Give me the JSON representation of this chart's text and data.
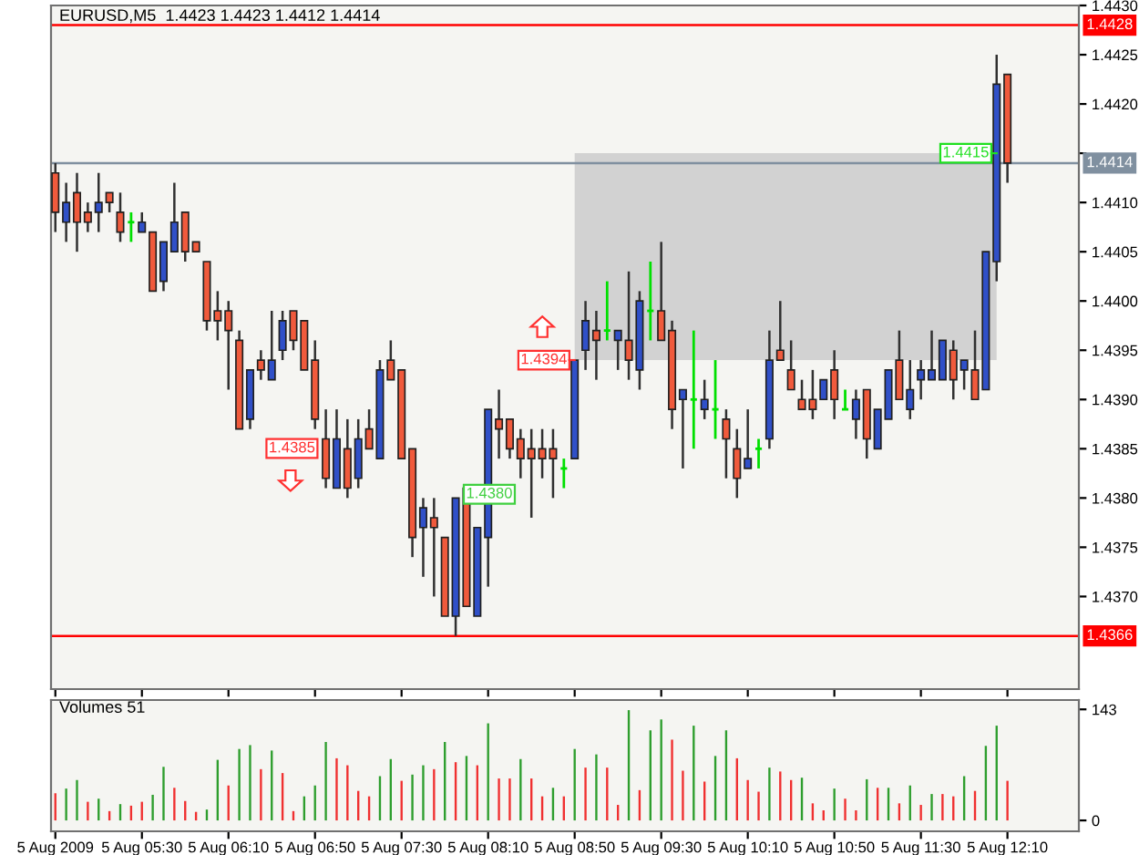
{
  "chart_data": [
    {
      "type": "candlestick",
      "title": "EURUSD,M5  1.4423 1.4423 1.4412 1.4414",
      "x": [
        "2009-08-05T04:50",
        "2009-08-05T04:55",
        "2009-08-05T05:00",
        "2009-08-05T05:05",
        "2009-08-05T05:10",
        "2009-08-05T05:15",
        "2009-08-05T05:20",
        "2009-08-05T05:25",
        "2009-08-05T05:30",
        "2009-08-05T05:35",
        "2009-08-05T05:40",
        "2009-08-05T05:45",
        "2009-08-05T05:50",
        "2009-08-05T05:55",
        "2009-08-05T06:00",
        "2009-08-05T06:05",
        "2009-08-05T06:10",
        "2009-08-05T06:15",
        "2009-08-05T06:20",
        "2009-08-05T06:25",
        "2009-08-05T06:30",
        "2009-08-05T06:35",
        "2009-08-05T06:40",
        "2009-08-05T06:45",
        "2009-08-05T06:50",
        "2009-08-05T06:55",
        "2009-08-05T07:00",
        "2009-08-05T07:05",
        "2009-08-05T07:10",
        "2009-08-05T07:15",
        "2009-08-05T07:20",
        "2009-08-05T07:25",
        "2009-08-05T07:30",
        "2009-08-05T07:35",
        "2009-08-05T07:40",
        "2009-08-05T07:45",
        "2009-08-05T07:50",
        "2009-08-05T07:55",
        "2009-08-05T08:00",
        "2009-08-05T08:05",
        "2009-08-05T08:10",
        "2009-08-05T08:15",
        "2009-08-05T08:20",
        "2009-08-05T08:25",
        "2009-08-05T08:30",
        "2009-08-05T08:35",
        "2009-08-05T08:40",
        "2009-08-05T08:45",
        "2009-08-05T08:50",
        "2009-08-05T08:55",
        "2009-08-05T09:00",
        "2009-08-05T09:05",
        "2009-08-05T09:10",
        "2009-08-05T09:15",
        "2009-08-05T09:20",
        "2009-08-05T09:25",
        "2009-08-05T09:30",
        "2009-08-05T09:35",
        "2009-08-05T09:40",
        "2009-08-05T09:45",
        "2009-08-05T09:50",
        "2009-08-05T09:55",
        "2009-08-05T10:00",
        "2009-08-05T10:05",
        "2009-08-05T10:10",
        "2009-08-05T10:15",
        "2009-08-05T10:20",
        "2009-08-05T10:25",
        "2009-08-05T10:30",
        "2009-08-05T10:35",
        "2009-08-05T10:40",
        "2009-08-05T10:45",
        "2009-08-05T10:50",
        "2009-08-05T10:55",
        "2009-08-05T11:00",
        "2009-08-05T11:05",
        "2009-08-05T11:10",
        "2009-08-05T11:15",
        "2009-08-05T11:20",
        "2009-08-05T11:25",
        "2009-08-05T11:30",
        "2009-08-05T11:35",
        "2009-08-05T11:40",
        "2009-08-05T11:45",
        "2009-08-05T11:50",
        "2009-08-05T11:55",
        "2009-08-05T12:00",
        "2009-08-05T12:05",
        "2009-08-05T12:10"
      ],
      "ohlc": [
        [
          1.4413,
          1.4414,
          1.4407,
          1.4409
        ],
        [
          1.4408,
          1.4412,
          1.4406,
          1.441
        ],
        [
          1.4411,
          1.4413,
          1.4405,
          1.4408
        ],
        [
          1.4409,
          1.441,
          1.4407,
          1.4408
        ],
        [
          1.4409,
          1.4413,
          1.4407,
          1.441
        ],
        [
          1.4411,
          1.4411,
          1.4409,
          1.441
        ],
        [
          1.4409,
          1.4411,
          1.4406,
          1.4407
        ],
        [
          1.4408,
          1.4409,
          1.4406,
          1.4408
        ],
        [
          1.4407,
          1.4409,
          1.4407,
          1.4408
        ],
        [
          1.4407,
          1.4407,
          1.4401,
          1.4401
        ],
        [
          1.4402,
          1.4406,
          1.4401,
          1.4406
        ],
        [
          1.4405,
          1.4412,
          1.4405,
          1.4408
        ],
        [
          1.4409,
          1.4409,
          1.4404,
          1.4405
        ],
        [
          1.4406,
          1.4406,
          1.4405,
          1.4405
        ],
        [
          1.4404,
          1.4404,
          1.4397,
          1.4398
        ],
        [
          1.4399,
          1.4401,
          1.4396,
          1.4398
        ],
        [
          1.4399,
          1.44,
          1.4391,
          1.4397
        ],
        [
          1.4396,
          1.4397,
          1.4387,
          1.4387
        ],
        [
          1.4388,
          1.4393,
          1.4387,
          1.4393
        ],
        [
          1.4394,
          1.4395,
          1.4392,
          1.4393
        ],
        [
          1.4392,
          1.4399,
          1.4392,
          1.4394
        ],
        [
          1.4395,
          1.4399,
          1.4394,
          1.4398
        ],
        [
          1.4399,
          1.4399,
          1.4395,
          1.4396
        ],
        [
          1.4398,
          1.4398,
          1.4393,
          1.4393
        ],
        [
          1.4394,
          1.4396,
          1.4387,
          1.4388
        ],
        [
          1.4386,
          1.4389,
          1.4381,
          1.4382
        ],
        [
          1.4381,
          1.4389,
          1.4381,
          1.4386
        ],
        [
          1.4385,
          1.4388,
          1.438,
          1.4381
        ],
        [
          1.4382,
          1.4388,
          1.4381,
          1.4386
        ],
        [
          1.4387,
          1.4389,
          1.4385,
          1.4385
        ],
        [
          1.4384,
          1.4394,
          1.4384,
          1.4393
        ],
        [
          1.4394,
          1.4396,
          1.4392,
          1.4392
        ],
        [
          1.4393,
          1.4393,
          1.4384,
          1.4384
        ],
        [
          1.4385,
          1.4385,
          1.4374,
          1.4376
        ],
        [
          1.4377,
          1.438,
          1.4372,
          1.4379
        ],
        [
          1.4378,
          1.438,
          1.437,
          1.4377
        ],
        [
          1.4376,
          1.4376,
          1.4368,
          1.4368
        ],
        [
          1.4368,
          1.438,
          1.4366,
          1.438
        ],
        [
          1.4381,
          1.4381,
          1.4369,
          1.4369
        ],
        [
          1.4368,
          1.4377,
          1.4368,
          1.4377
        ],
        [
          1.4376,
          1.4389,
          1.4371,
          1.4389
        ],
        [
          1.4388,
          1.4391,
          1.4384,
          1.4387
        ],
        [
          1.4388,
          1.4388,
          1.4384,
          1.4385
        ],
        [
          1.4386,
          1.4387,
          1.4382,
          1.4384
        ],
        [
          1.4385,
          1.4387,
          1.4378,
          1.4384
        ],
        [
          1.4385,
          1.4387,
          1.4382,
          1.4384
        ],
        [
          1.4385,
          1.4387,
          1.438,
          1.4384
        ],
        [
          1.4383,
          1.4384,
          1.4381,
          1.4383
        ],
        [
          1.4384,
          1.4394,
          1.4384,
          1.4394
        ],
        [
          1.4395,
          1.44,
          1.4393,
          1.4398
        ],
        [
          1.4397,
          1.4399,
          1.4392,
          1.4396
        ],
        [
          1.4397,
          1.4402,
          1.4396,
          1.4397
        ],
        [
          1.4396,
          1.4397,
          1.4393,
          1.4397
        ],
        [
          1.4396,
          1.4403,
          1.4392,
          1.4394
        ],
        [
          1.4393,
          1.4401,
          1.4391,
          1.44
        ],
        [
          1.4399,
          1.4404,
          1.4396,
          1.4399
        ],
        [
          1.4399,
          1.4406,
          1.4396,
          1.4396
        ],
        [
          1.4397,
          1.4398,
          1.4387,
          1.4389
        ],
        [
          1.439,
          1.4391,
          1.4383,
          1.4391
        ],
        [
          1.439,
          1.4397,
          1.4385,
          1.439
        ],
        [
          1.4389,
          1.4392,
          1.4388,
          1.439
        ],
        [
          1.4389,
          1.4394,
          1.4386,
          1.4389
        ],
        [
          1.4388,
          1.4389,
          1.4382,
          1.4386
        ],
        [
          1.4385,
          1.4387,
          1.438,
          1.4382
        ],
        [
          1.4383,
          1.4389,
          1.4383,
          1.4384
        ],
        [
          1.4385,
          1.4386,
          1.4383,
          1.4385
        ],
        [
          1.4386,
          1.4397,
          1.4385,
          1.4394
        ],
        [
          1.4395,
          1.44,
          1.4394,
          1.4394
        ],
        [
          1.4393,
          1.4396,
          1.4391,
          1.4391
        ],
        [
          1.439,
          1.4392,
          1.4389,
          1.4389
        ],
        [
          1.439,
          1.4393,
          1.4388,
          1.4389
        ],
        [
          1.439,
          1.4392,
          1.439,
          1.4392
        ],
        [
          1.4393,
          1.4395,
          1.4388,
          1.439
        ],
        [
          1.4389,
          1.4391,
          1.4389,
          1.4389
        ],
        [
          1.4388,
          1.4391,
          1.4386,
          1.439
        ],
        [
          1.4391,
          1.4391,
          1.4384,
          1.4386
        ],
        [
          1.4385,
          1.4389,
          1.4385,
          1.4389
        ],
        [
          1.4388,
          1.4393,
          1.4388,
          1.4393
        ],
        [
          1.4394,
          1.4397,
          1.439,
          1.439
        ],
        [
          1.4389,
          1.4394,
          1.4388,
          1.4391
        ],
        [
          1.4392,
          1.4394,
          1.439,
          1.4393
        ],
        [
          1.4392,
          1.4397,
          1.4392,
          1.4393
        ],
        [
          1.4392,
          1.4396,
          1.4392,
          1.4396
        ],
        [
          1.4395,
          1.4396,
          1.439,
          1.4392
        ],
        [
          1.4393,
          1.4394,
          1.4391,
          1.4394
        ],
        [
          1.4393,
          1.4397,
          1.439,
          1.439
        ],
        [
          1.4391,
          1.4405,
          1.4391,
          1.4405
        ],
        [
          1.4404,
          1.4425,
          1.4402,
          1.4422
        ],
        [
          1.4423,
          1.4423,
          1.4412,
          1.4414
        ]
      ],
      "colors": [
        "#f05a3c",
        "#3050c8",
        "#f05a3c",
        "#f05a3c",
        "#3050c8",
        "#f05a3c",
        "#f05a3c",
        "#00e000",
        "#3050c8",
        "#f05a3c",
        "#3050c8",
        "#3050c8",
        "#f05a3c",
        "#f05a3c",
        "#f05a3c",
        "#f05a3c",
        "#f05a3c",
        "#f05a3c",
        "#3050c8",
        "#f05a3c",
        "#3050c8",
        "#3050c8",
        "#f05a3c",
        "#f05a3c",
        "#f05a3c",
        "#f05a3c",
        "#3050c8",
        "#f05a3c",
        "#3050c8",
        "#f05a3c",
        "#3050c8",
        "#f05a3c",
        "#f05a3c",
        "#f05a3c",
        "#3050c8",
        "#f05a3c",
        "#f05a3c",
        "#3050c8",
        "#f05a3c",
        "#3050c8",
        "#3050c8",
        "#f05a3c",
        "#f05a3c",
        "#f05a3c",
        "#f05a3c",
        "#f05a3c",
        "#f05a3c",
        "#00e000",
        "#3050c8",
        "#3050c8",
        "#f05a3c",
        "#00e000",
        "#3050c8",
        "#f05a3c",
        "#3050c8",
        "#00e000",
        "#f05a3c",
        "#f05a3c",
        "#3050c8",
        "#00e000",
        "#3050c8",
        "#00e000",
        "#f05a3c",
        "#f05a3c",
        "#3050c8",
        "#00e000",
        "#3050c8",
        "#f05a3c",
        "#f05a3c",
        "#f05a3c",
        "#f05a3c",
        "#3050c8",
        "#f05a3c",
        "#00e000",
        "#3050c8",
        "#f05a3c",
        "#3050c8",
        "#3050c8",
        "#f05a3c",
        "#3050c8",
        "#3050c8",
        "#3050c8",
        "#3050c8",
        "#f05a3c",
        "#3050c8",
        "#f05a3c",
        "#3050c8",
        "#3050c8",
        "#f05a3c"
      ],
      "xlim": [
        "2009-08-05T04:48",
        "2009-08-05T12:43"
      ],
      "ylim": [
        1.43606,
        1.443
      ],
      "yticks": [
        {
          "value": 1.437,
          "label": "1.4370"
        },
        1.4375,
        {
          "value": 1.438,
          "label": "1.4380"
        },
        1.4385,
        {
          "value": 1.439,
          "label": "1.4390"
        },
        1.4395,
        {
          "value": 1.44,
          "label": "1.4400"
        },
        1.4405,
        {
          "value": 1.441,
          "label": "1.4410"
        },
        {
          "value": 1.4415,
          "label": null
        },
        {
          "value": 1.442,
          "label": "1.4420"
        },
        1.4425,
        {
          "value": 1.443,
          "label": "1.4430"
        }
      ],
      "tick_labels": "y",
      "grid": false,
      "legend": false,
      "ref_lines": [
        {
          "axis": "y",
          "value": 1.4428,
          "label": "1.4428",
          "color": "#ff0000"
        },
        {
          "axis": "y",
          "value": 1.4366,
          "label": "1.4366",
          "color": "#ff0000"
        },
        {
          "axis": "y",
          "value": 1.4414,
          "label": "1.4414",
          "color": "#8090a0"
        }
      ],
      "bands": [
        {
          "axis": "y",
          "from": 1.4394,
          "to": 1.4415,
          "color": "#d2d2d2"
        }
      ],
      "xticks": [
        {
          "value": "2009-08-05T04:50",
          "label": null
        },
        {
          "value": "2009-08-05T05:30",
          "label": null
        },
        {
          "value": "2009-08-05T06:10",
          "label": null
        },
        {
          "value": "2009-08-05T06:50",
          "label": null
        },
        {
          "value": "2009-08-05T07:30",
          "label": null
        },
        {
          "value": "2009-08-05T08:10",
          "label": null
        },
        {
          "value": "2009-08-05T08:50",
          "label": null
        },
        {
          "value": "2009-08-05T09:30",
          "label": null
        },
        {
          "value": "2009-08-05T10:10",
          "label": null
        },
        {
          "value": "2009-08-05T10:50",
          "label": null
        },
        {
          "value": "2009-08-05T11:30",
          "label": null
        },
        {
          "value": "2009-08-05T12:10",
          "label": null
        }
      ],
      "annotations": [
        "1.4385",
        {
          "text": "1.4394",
          "x": "2009-08-05T08:50",
          "y": 1.4394
        },
        "1.4380",
        {
          "text": "1.4415",
          "x": "2009-08-05T12:05",
          "y": 1.4415
        }
      ]
    },
    {
      "type": "bar",
      "title": "Volumes 51",
      "x": [
        "2009-08-05T04:50",
        "2009-08-05T04:55",
        "2009-08-05T05:00",
        "2009-08-05T05:05",
        "2009-08-05T05:10",
        "2009-08-05T05:15",
        "2009-08-05T05:20",
        "2009-08-05T05:25",
        "2009-08-05T05:30",
        "2009-08-05T05:35",
        "2009-08-05T05:40",
        "2009-08-05T05:45",
        "2009-08-05T05:50",
        "2009-08-05T05:55",
        "2009-08-05T06:00",
        "2009-08-05T06:05",
        "2009-08-05T06:10",
        "2009-08-05T06:15",
        "2009-08-05T06:20",
        "2009-08-05T06:25",
        "2009-08-05T06:30",
        "2009-08-05T06:35",
        "2009-08-05T06:40",
        "2009-08-05T06:45",
        "2009-08-05T06:50",
        "2009-08-05T06:55",
        "2009-08-05T07:00",
        "2009-08-05T07:05",
        "2009-08-05T07:10",
        "2009-08-05T07:15",
        "2009-08-05T07:20",
        "2009-08-05T07:25",
        "2009-08-05T07:30",
        "2009-08-05T07:35",
        "2009-08-05T07:40",
        "2009-08-05T07:45",
        "2009-08-05T07:50",
        "2009-08-05T07:55",
        "2009-08-05T08:00",
        "2009-08-05T08:05",
        "2009-08-05T08:10",
        "2009-08-05T08:15",
        "2009-08-05T08:20",
        "2009-08-05T08:25",
        "2009-08-05T08:30",
        "2009-08-05T08:35",
        "2009-08-05T08:40",
        "2009-08-05T08:45",
        "2009-08-05T08:50",
        "2009-08-05T08:55",
        "2009-08-05T09:00",
        "2009-08-05T09:05",
        "2009-08-05T09:10",
        "2009-08-05T09:15",
        "2009-08-05T09:20",
        "2009-08-05T09:25",
        "2009-08-05T09:30",
        "2009-08-05T09:35",
        "2009-08-05T09:40",
        "2009-08-05T09:45",
        "2009-08-05T09:50",
        "2009-08-05T09:55",
        "2009-08-05T10:00",
        "2009-08-05T10:05",
        "2009-08-05T10:10",
        "2009-08-05T10:15",
        "2009-08-05T10:20",
        "2009-08-05T10:25",
        "2009-08-05T10:30",
        "2009-08-05T10:35",
        "2009-08-05T10:40",
        "2009-08-05T10:45",
        "2009-08-05T10:50",
        "2009-08-05T10:55",
        "2009-08-05T11:00",
        "2009-08-05T11:05",
        "2009-08-05T11:10",
        "2009-08-05T11:15",
        "2009-08-05T11:20",
        "2009-08-05T11:25",
        "2009-08-05T11:30",
        "2009-08-05T11:35",
        "2009-08-05T11:40",
        "2009-08-05T11:45",
        "2009-08-05T11:50",
        "2009-08-05T11:55",
        "2009-08-05T12:00",
        "2009-08-05T12:05",
        "2009-08-05T12:10"
      ],
      "values": [
        35,
        41,
        52,
        24,
        28,
        12,
        21,
        19,
        24,
        33,
        69,
        42,
        25,
        11,
        14,
        78,
        45,
        92,
        97,
        66,
        90,
        61,
        12,
        31,
        45,
        101,
        80,
        71,
        38,
        31,
        57,
        79,
        51,
        59,
        71,
        66,
        101,
        75,
        83,
        71,
        125,
        54,
        54,
        79,
        54,
        31,
        42,
        31,
        92,
        68,
        85,
        68,
        20,
        142,
        39,
        116,
        130,
        104,
        64,
        122,
        50,
        83,
        116,
        80,
        52,
        37,
        68,
        63,
        52,
        55,
        22,
        13,
        41,
        28,
        13,
        53,
        42,
        42,
        22,
        45,
        20,
        34,
        34,
        31,
        57,
        38,
        96,
        122,
        51
      ],
      "colors": [
        "#f03030",
        "#2e9e2e",
        "#2e9e2e",
        "#f03030",
        "#2e9e2e",
        "#f03030",
        "#2e9e2e",
        "#f03030",
        "#f03030",
        "#2e9e2e",
        "#2e9e2e",
        "#f03030",
        "#f03030",
        "#f03030",
        "#2e9e2e",
        "#2e9e2e",
        "#f03030",
        "#2e9e2e",
        "#2e9e2e",
        "#f03030",
        "#2e9e2e",
        "#f03030",
        "#f03030",
        "#2e9e2e",
        "#2e9e2e",
        "#2e9e2e",
        "#f03030",
        "#f03030",
        "#f03030",
        "#f03030",
        "#2e9e2e",
        "#2e9e2e",
        "#f03030",
        "#2e9e2e",
        "#2e9e2e",
        "#f03030",
        "#2e9e2e",
        "#f03030",
        "#2e9e2e",
        "#f03030",
        "#2e9e2e",
        "#f03030",
        "#f03030",
        "#2e9e2e",
        "#f03030",
        "#f03030",
        "#2e9e2e",
        "#f03030",
        "#2e9e2e",
        "#f03030",
        "#2e9e2e",
        "#f03030",
        "#f03030",
        "#2e9e2e",
        "#f03030",
        "#2e9e2e",
        "#2e9e2e",
        "#f03030",
        "#f03030",
        "#2e9e2e",
        "#f03030",
        "#2e9e2e",
        "#2e9e2e",
        "#f03030",
        "#f03030",
        "#f03030",
        "#2e9e2e",
        "#f03030",
        "#f03030",
        "#2e9e2e",
        "#f03030",
        "#f03030",
        "#2e9e2e",
        "#f03030",
        "#f03030",
        "#2e9e2e",
        "#f03030",
        "#2e9e2e",
        "#f03030",
        "#2e9e2e",
        "#f03030",
        "#2e9e2e",
        "#f03030",
        "#f03030",
        "#2e9e2e",
        "#f03030",
        "#2e9e2e",
        "#2e9e2e",
        "#f03030"
      ],
      "xlim": [
        "2009-08-05T04:48",
        "2009-08-05T12:43"
      ],
      "xticks": [
        {
          "value": "2009-08-05T04:50",
          "label": "5 Aug 2009"
        },
        {
          "value": "2009-08-05T05:30",
          "label": "5 Aug 05:30"
        },
        {
          "value": "2009-08-05T06:10",
          "label": "5 Aug 06:10"
        },
        {
          "value": "2009-08-05T06:50",
          "label": "5 Aug 06:50"
        },
        {
          "value": "2009-08-05T07:30",
          "label": "5 Aug 07:30"
        },
        {
          "value": "2009-08-05T08:10",
          "label": "5 Aug 08:10"
        },
        {
          "value": "2009-08-05T08:50",
          "label": "5 Aug 08:50"
        },
        {
          "value": "2009-08-05T09:30",
          "label": "5 Aug 09:30"
        },
        {
          "value": "2009-08-05T10:10",
          "label": "5 Aug 10:10"
        },
        {
          "value": "2009-08-05T10:50",
          "label": "5 Aug 10:50"
        },
        {
          "value": "2009-08-05T11:30",
          "label": "5 Aug 11:30"
        },
        {
          "value": "2009-08-05T12:10",
          "label": "5 Aug 12:10"
        }
      ],
      "ylim": [
        -14,
        155
      ],
      "yticks": [
        0,
        143
      ],
      "grid": false,
      "legend": false
    }
  ]
}
